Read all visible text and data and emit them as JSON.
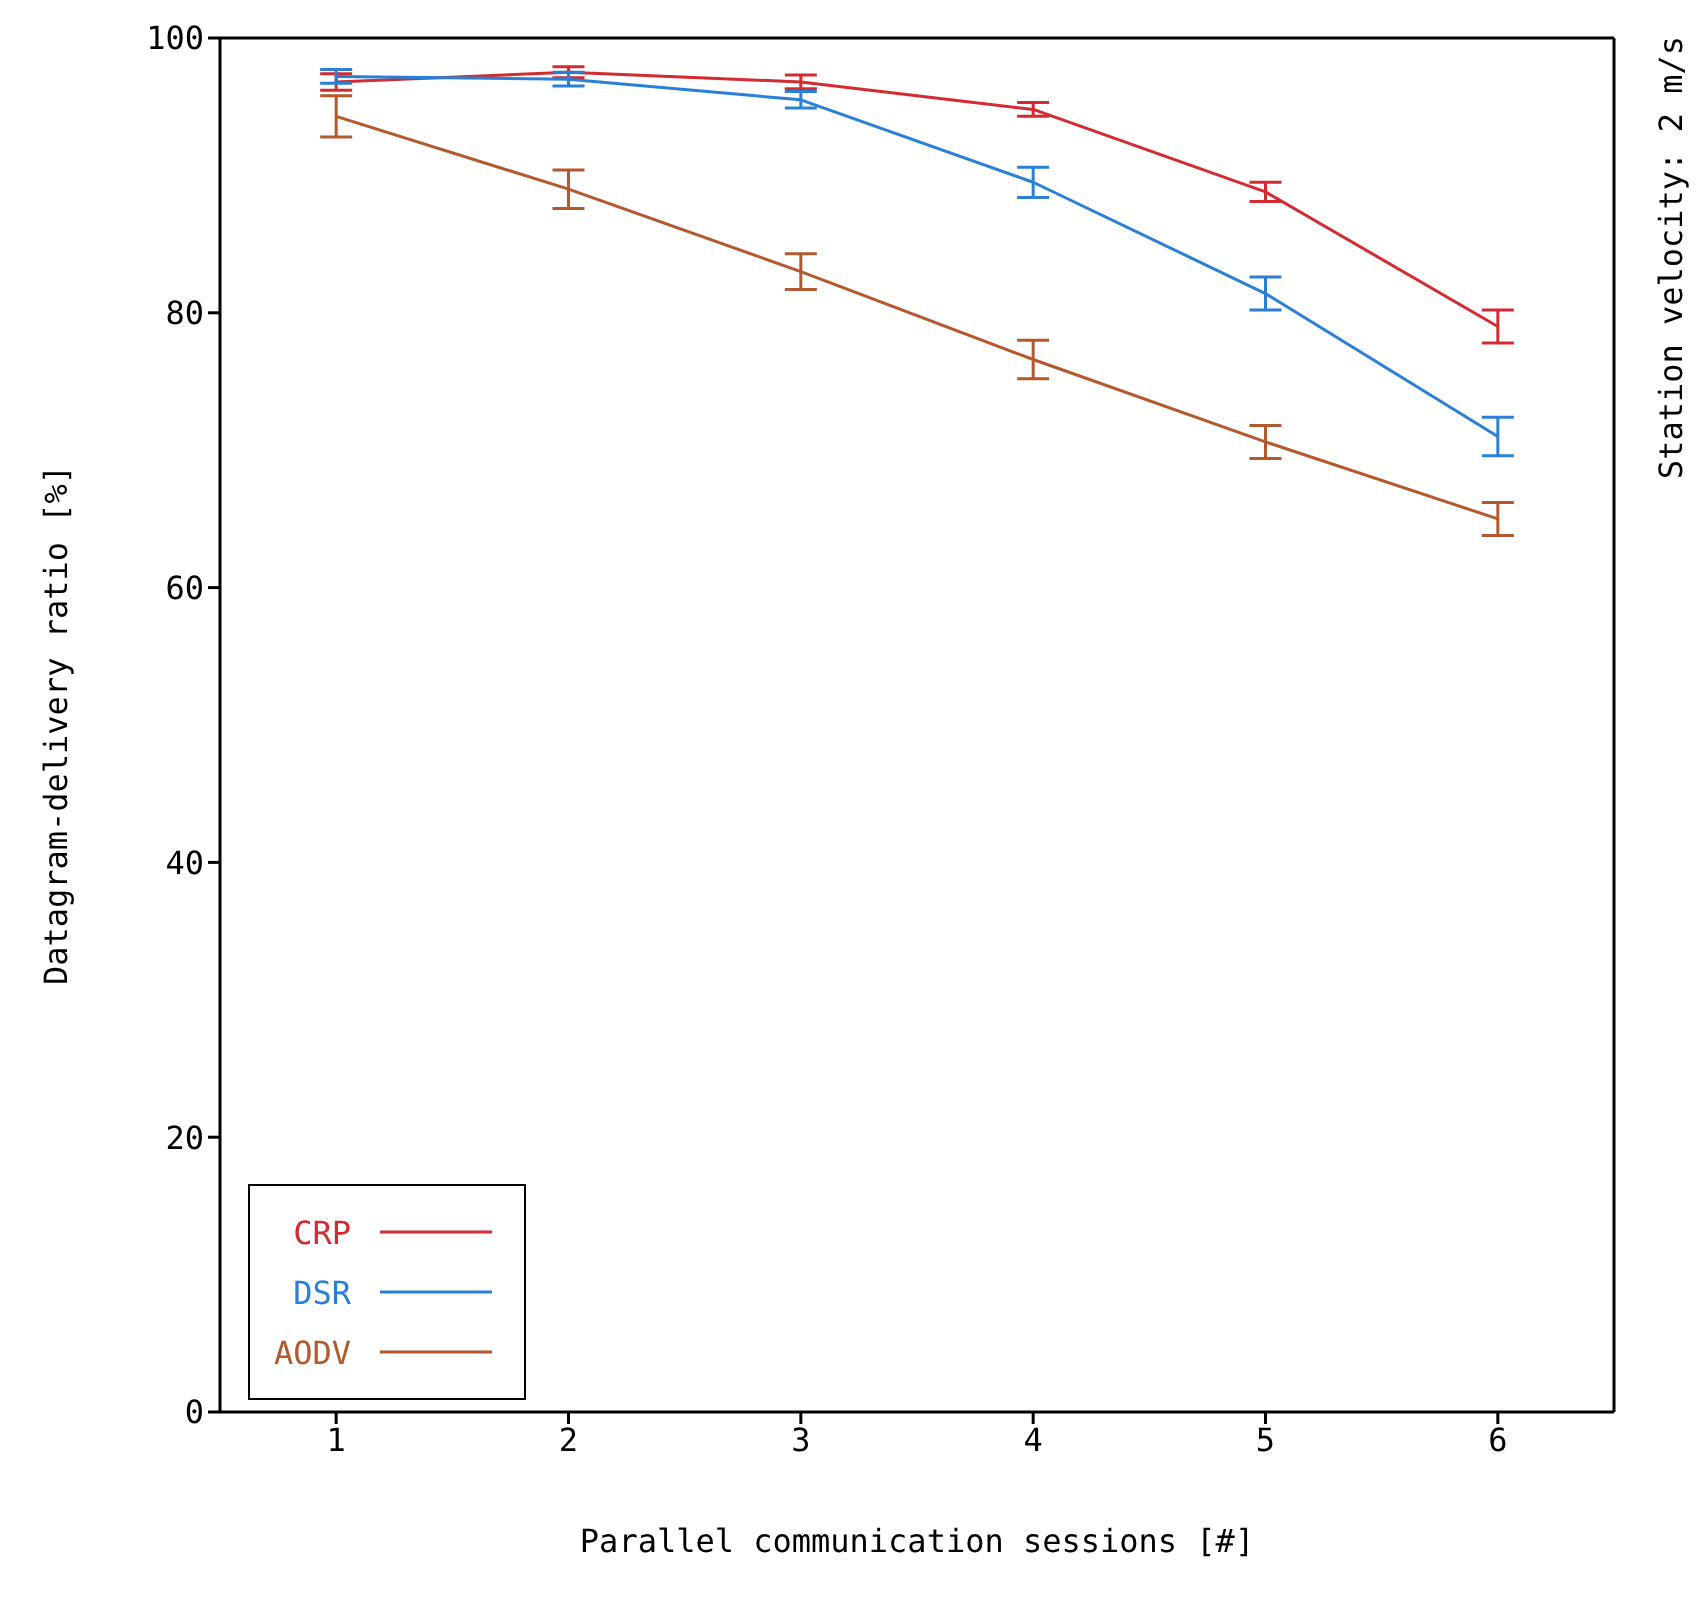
{
  "chart_data": {
    "type": "line",
    "xlabel": "Parallel communication sessions [#]",
    "ylabel": "Datagram-delivery ratio [%]",
    "annotations": [
      "Station velocity: 2 m/s"
    ],
    "x": [
      1,
      2,
      3,
      4,
      5,
      6
    ],
    "xlim": [
      0.5,
      6.5
    ],
    "xticks": [
      1,
      2,
      3,
      4,
      5,
      6
    ],
    "ylim": [
      0,
      100
    ],
    "yticks": [
      0,
      20,
      40,
      60,
      80,
      100
    ],
    "grid": false,
    "legend": "bottom left",
    "marker": "none",
    "line_style": "solid",
    "series": [
      {
        "name": "CRP",
        "color": "#d42a32",
        "values": [
          96.8,
          97.5,
          96.8,
          94.8,
          88.8,
          79
        ],
        "errors": [
          0.6,
          0.4,
          0.5,
          0.5,
          0.7,
          1.2
        ]
      },
      {
        "name": "DSR",
        "color": "#2a80d6",
        "values": [
          97.2,
          97,
          95.5,
          89.5,
          81.4,
          71
        ],
        "errors": [
          0.5,
          0.5,
          0.6,
          1.1,
          1.2,
          1.4
        ]
      },
      {
        "name": "AODV",
        "color": "#b4582e",
        "values": [
          94.3,
          89,
          83,
          76.6,
          70.6,
          65
        ],
        "errors": [
          1.5,
          1.4,
          1.3,
          1.4,
          1.2,
          1.2
        ]
      }
    ]
  }
}
